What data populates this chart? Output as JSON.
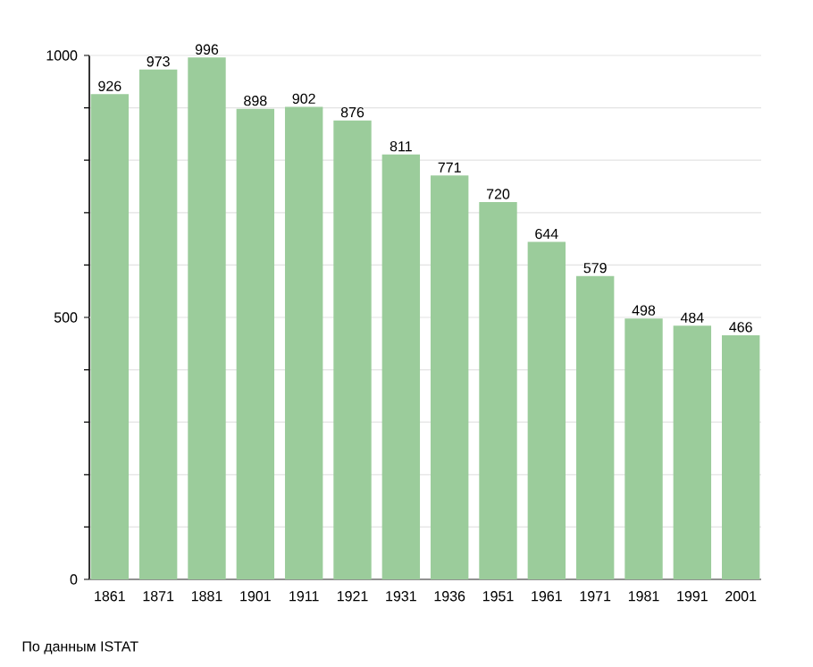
{
  "chart_data": {
    "type": "bar",
    "categories": [
      "1861",
      "1871",
      "1881",
      "1901",
      "1911",
      "1921",
      "1931",
      "1936",
      "1951",
      "1961",
      "1971",
      "1981",
      "1991",
      "2001"
    ],
    "values": [
      926,
      973,
      996,
      898,
      902,
      876,
      811,
      771,
      720,
      644,
      579,
      498,
      484,
      466
    ],
    "color": "#9bcc9b",
    "ylim": [
      0,
      1000
    ],
    "yticks": [
      0,
      {
        "value": 100,
        "label": null
      },
      {
        "value": 200,
        "label": null
      },
      {
        "value": 300,
        "label": null
      },
      {
        "value": 400,
        "label": null
      },
      500,
      {
        "value": 600,
        "label": null
      },
      {
        "value": 700,
        "label": null
      },
      {
        "value": 800,
        "label": null
      },
      {
        "value": 900,
        "label": null
      },
      1000
    ],
    "grid": "y",
    "data_labels": true,
    "annotations": [
      "По данным ISTAT"
    ]
  }
}
